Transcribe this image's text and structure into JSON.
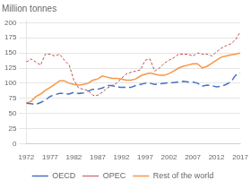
{
  "chart_data": {
    "type": "line",
    "title": "Million tonnes",
    "x": [
      1972,
      1973,
      1974,
      1975,
      1976,
      1977,
      1978,
      1979,
      1980,
      1981,
      1982,
      1983,
      1984,
      1985,
      1986,
      1987,
      1988,
      1989,
      1990,
      1991,
      1992,
      1993,
      1994,
      1995,
      1996,
      1997,
      1998,
      1999,
      2000,
      2001,
      2002,
      2003,
      2004,
      2005,
      2006,
      2007,
      2008,
      2009,
      2010,
      2011,
      2012,
      2013,
      2014,
      2015,
      2016,
      2017
    ],
    "series": [
      {
        "name": "OECD",
        "color": "#4472c4",
        "line_style": "dashed",
        "values": [
          67,
          66,
          65,
          68,
          72,
          78,
          81,
          83,
          83,
          82,
          85,
          83,
          84,
          87,
          90,
          90,
          92,
          96,
          96,
          94,
          93,
          93,
          93,
          96,
          98,
          100,
          100,
          98,
          99,
          100,
          101,
          101,
          102,
          103,
          102,
          102,
          100,
          95,
          97,
          96,
          94,
          95,
          98,
          102,
          113,
          117
        ]
      },
      {
        "name": "OPEC",
        "color": "#c0504d",
        "line_style": "dotted",
        "values": [
          135,
          140,
          135,
          130,
          148,
          148,
          145,
          148,
          138,
          130,
          105,
          92,
          90,
          88,
          80,
          80,
          85,
          92,
          96,
          100,
          108,
          115,
          118,
          120,
          122,
          138,
          140,
          120,
          125,
          133,
          138,
          142,
          148,
          148,
          148,
          145,
          150,
          148,
          148,
          145,
          152,
          158,
          162,
          165,
          172,
          185
        ]
      },
      {
        "name": "Rest of the world",
        "color": "#f79646",
        "line_style": "solid",
        "values": [
          67,
          70,
          78,
          82,
          88,
          93,
          98,
          104,
          104,
          100,
          98,
          97,
          98,
          100,
          105,
          107,
          112,
          110,
          108,
          108,
          107,
          105,
          105,
          107,
          112,
          115,
          117,
          115,
          113,
          113,
          116,
          120,
          125,
          128,
          130,
          132,
          132,
          125,
          128,
          133,
          138,
          143,
          145,
          147,
          148,
          150
        ]
      }
    ],
    "xlim": [
      1972,
      2017
    ],
    "xticks": [
      1972,
      1977,
      1982,
      1987,
      1992,
      1997,
      2002,
      2007,
      2012,
      2017
    ],
    "ylim": [
      0,
      205
    ],
    "yticks": [
      0,
      25,
      50,
      75,
      100,
      125,
      150,
      175,
      200
    ],
    "grid": "y",
    "legend": "bottom"
  }
}
